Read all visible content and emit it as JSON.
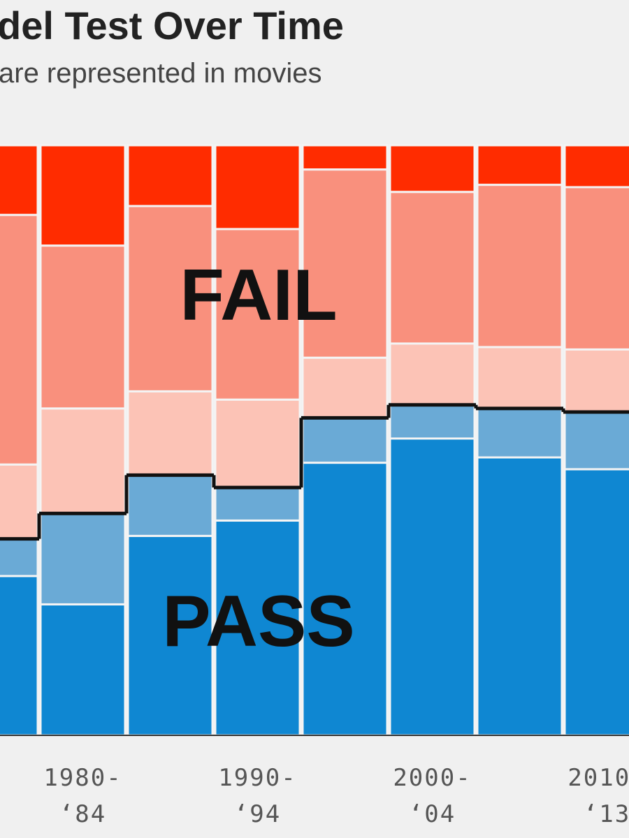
{
  "chart_data": {
    "type": "stacked_bar",
    "title": "del Test Over Time",
    "subtitle": "are represented in movies",
    "annotations": [
      "FAIL",
      "PASS"
    ],
    "categories": [
      null,
      "1980-\n‘84",
      null,
      "1990-\n‘94",
      null,
      "2000-\n‘04",
      null,
      "2010-\n‘13"
    ],
    "series": [
      {
        "color": "#0f87d2",
        "values": [
          27.0,
          22.2,
          33.8,
          36.4,
          46.2,
          50.3,
          47.1,
          45.1
        ]
      },
      {
        "color": "#6aaad6",
        "values": [
          6.3,
          15.4,
          10.3,
          5.6,
          7.6,
          5.7,
          8.3,
          9.7
        ]
      },
      {
        "color": "#fcc3b6",
        "values": [
          12.6,
          17.8,
          14.2,
          14.9,
          10.2,
          10.4,
          10.4,
          10.6
        ]
      },
      {
        "color": "#f9907d",
        "values": [
          42.3,
          27.6,
          31.4,
          28.9,
          31.9,
          25.7,
          27.5,
          27.5
        ]
      },
      {
        "color": "#ff2c00",
        "values": [
          11.8,
          17.0,
          10.3,
          14.2,
          4.1,
          7.9,
          6.7,
          7.1
        ]
      }
    ],
    "ylim": [
      0,
      100
    ]
  }
}
